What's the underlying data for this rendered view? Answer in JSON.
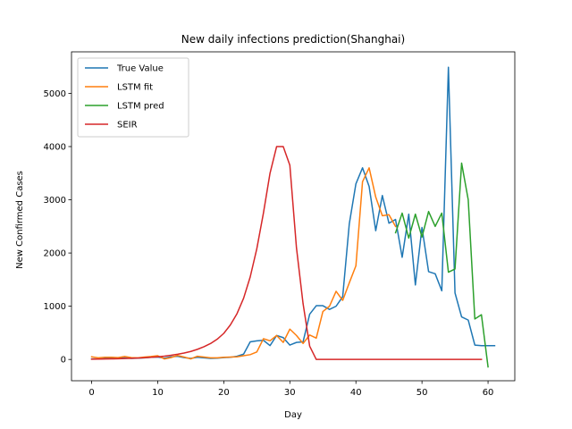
{
  "chart_data": {
    "type": "line",
    "title": "New daily infections prediction(Shanghai)",
    "xlabel": "Day",
    "ylabel": "New Confirmed Cases",
    "xlim": [
      -3.05,
      64.05
    ],
    "ylim": [
      -400,
      5780
    ],
    "xticks": [
      0,
      10,
      20,
      30,
      40,
      50,
      60
    ],
    "yticks": [
      0,
      1000,
      2000,
      3000,
      4000,
      5000
    ],
    "grid": false,
    "legend_position": "top-left",
    "series": [
      {
        "name": "True Value",
        "color": "#1f77b4",
        "x": [
          0,
          1,
          2,
          3,
          4,
          5,
          6,
          7,
          8,
          9,
          10,
          11,
          12,
          13,
          14,
          15,
          16,
          17,
          18,
          19,
          20,
          21,
          22,
          23,
          24,
          25,
          26,
          27,
          28,
          29,
          30,
          31,
          32,
          33,
          34,
          35,
          36,
          37,
          38,
          39,
          40,
          41,
          42,
          43,
          44,
          45,
          46,
          47,
          48,
          49,
          50,
          51,
          52,
          53,
          54,
          55,
          56,
          57,
          58,
          59,
          60,
          61
        ],
        "y": [
          10,
          10,
          15,
          15,
          20,
          30,
          20,
          25,
          30,
          40,
          45,
          25,
          50,
          60,
          35,
          20,
          40,
          30,
          20,
          25,
          35,
          40,
          60,
          100,
          330,
          350,
          360,
          260,
          450,
          410,
          270,
          320,
          330,
          850,
          1010,
          1010,
          940,
          1000,
          1180,
          2550,
          3300,
          3600,
          3250,
          2420,
          3080,
          2560,
          2630,
          1920,
          2730,
          1400,
          2480,
          1650,
          1610,
          1290,
          5490,
          1250,
          800,
          740,
          270,
          260,
          260,
          260
        ]
      },
      {
        "name": "LSTM fit",
        "color": "#ff7f0e",
        "x": [
          0,
          1,
          2,
          3,
          4,
          5,
          6,
          7,
          8,
          9,
          10,
          11,
          12,
          13,
          14,
          15,
          16,
          17,
          18,
          19,
          20,
          21,
          22,
          23,
          24,
          25,
          26,
          27,
          28,
          29,
          30,
          31,
          32,
          33,
          34,
          35,
          36,
          37,
          38,
          39,
          40,
          41,
          42,
          43,
          44,
          45,
          46
        ],
        "y": [
          50,
          30,
          40,
          40,
          35,
          55,
          35,
          30,
          45,
          55,
          70,
          10,
          35,
          75,
          45,
          10,
          60,
          45,
          30,
          30,
          40,
          45,
          50,
          70,
          90,
          140,
          390,
          350,
          450,
          320,
          570,
          450,
          300,
          460,
          400,
          900,
          1000,
          1280,
          1110,
          1440,
          1760,
          3340,
          3600,
          3050,
          2700,
          2720,
          2500
        ]
      },
      {
        "name": "LSTM pred",
        "color": "#2ca02c",
        "x": [
          46,
          47,
          48,
          49,
          50,
          51,
          52,
          53,
          54,
          55,
          56,
          57,
          58,
          59,
          60
        ],
        "y": [
          2380,
          2750,
          2280,
          2730,
          2300,
          2780,
          2500,
          2750,
          1640,
          1700,
          3690,
          3000,
          760,
          840,
          -140
        ]
      },
      {
        "name": "SEIR",
        "color": "#d62728",
        "x": [
          0,
          1,
          2,
          3,
          4,
          5,
          6,
          7,
          8,
          9,
          10,
          11,
          12,
          13,
          14,
          15,
          16,
          17,
          18,
          19,
          20,
          21,
          22,
          23,
          24,
          25,
          26,
          27,
          28,
          29,
          30,
          31,
          32,
          33,
          34,
          35,
          36,
          37,
          38,
          39,
          40,
          41,
          42,
          43,
          44,
          45,
          46,
          47,
          48,
          49,
          50,
          51,
          52,
          53,
          54,
          55,
          56,
          57,
          58,
          59
        ],
        "y": [
          5,
          7,
          9,
          11,
          14,
          17,
          21,
          26,
          32,
          40,
          50,
          62,
          78,
          97,
          120,
          150,
          190,
          240,
          300,
          380,
          490,
          650,
          860,
          1150,
          1550,
          2080,
          2750,
          3500,
          4000,
          4000,
          3650,
          2100,
          1050,
          250,
          0,
          0,
          0,
          0,
          0,
          0,
          0,
          0,
          0,
          0,
          0,
          0,
          0,
          0,
          0,
          0,
          0,
          0,
          0,
          0,
          0,
          0,
          0,
          0,
          0,
          0
        ]
      }
    ]
  }
}
